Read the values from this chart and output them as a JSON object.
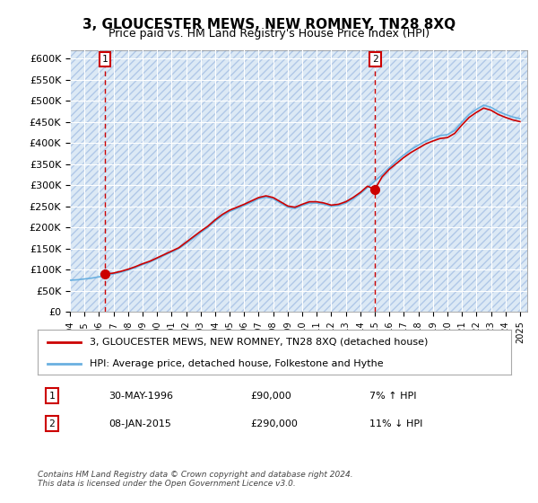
{
  "title": "3, GLOUCESTER MEWS, NEW ROMNEY, TN28 8XQ",
  "subtitle": "Price paid vs. HM Land Registry's House Price Index (HPI)",
  "ylim": [
    0,
    620000
  ],
  "yticks": [
    0,
    50000,
    100000,
    150000,
    200000,
    250000,
    300000,
    350000,
    400000,
    450000,
    500000,
    550000,
    600000
  ],
  "ytick_labels": [
    "£0",
    "£50K",
    "£100K",
    "£150K",
    "£200K",
    "£250K",
    "£300K",
    "£350K",
    "£400K",
    "£450K",
    "£500K",
    "£550K",
    "£600K"
  ],
  "xlim_start": 1994.0,
  "xlim_end": 2025.5,
  "background_color": "#dce9f5",
  "hatch_color": "#b0c8e8",
  "grid_color": "#ffffff",
  "line_color_hpi": "#6ab0e0",
  "line_color_price": "#cc0000",
  "point1_x": 1996.41,
  "point1_y": 90000,
  "point2_x": 2015.03,
  "point2_y": 290000,
  "annotation1_label": "1",
  "annotation2_label": "2",
  "legend_label_price": "3, GLOUCESTER MEWS, NEW ROMNEY, TN28 8XQ (detached house)",
  "legend_label_hpi": "HPI: Average price, detached house, Folkestone and Hythe",
  "table_row1": [
    "1",
    "30-MAY-1996",
    "£90,000",
    "7% ↑ HPI"
  ],
  "table_row2": [
    "2",
    "08-JAN-2015",
    "£290,000",
    "11% ↓ HPI"
  ],
  "footer_text": "Contains HM Land Registry data © Crown copyright and database right 2024.\nThis data is licensed under the Open Government Licence v3.0.",
  "hpi_years": [
    1994,
    1994.5,
    1995,
    1995.5,
    1996,
    1996.5,
    1997,
    1997.5,
    1998,
    1998.5,
    1999,
    1999.5,
    2000,
    2000.5,
    2001,
    2001.5,
    2002,
    2002.5,
    2003,
    2003.5,
    2004,
    2004.5,
    2005,
    2005.5,
    2006,
    2006.5,
    2007,
    2007.5,
    2008,
    2008.5,
    2009,
    2009.5,
    2010,
    2010.5,
    2011,
    2011.5,
    2012,
    2012.5,
    2013,
    2013.5,
    2014,
    2014.5,
    2015,
    2015.5,
    2016,
    2016.5,
    2017,
    2017.5,
    2018,
    2018.5,
    2019,
    2019.5,
    2020,
    2020.5,
    2021,
    2021.5,
    2022,
    2022.5,
    2023,
    2023.5,
    2024,
    2024.5,
    2025
  ],
  "hpi_values": [
    75000,
    76000,
    78000,
    80000,
    83000,
    86000,
    90000,
    94000,
    99000,
    105000,
    112000,
    118000,
    126000,
    134000,
    142000,
    150000,
    162000,
    175000,
    188000,
    200000,
    215000,
    228000,
    238000,
    245000,
    252000,
    260000,
    268000,
    272000,
    268000,
    258000,
    248000,
    245000,
    252000,
    258000,
    258000,
    255000,
    250000,
    252000,
    258000,
    268000,
    280000,
    295000,
    310000,
    325000,
    342000,
    358000,
    372000,
    385000,
    395000,
    405000,
    412000,
    418000,
    420000,
    430000,
    450000,
    468000,
    480000,
    490000,
    485000,
    475000,
    468000,
    462000,
    458000
  ],
  "price_years": [
    1994,
    1994.5,
    1995,
    1995.5,
    1996,
    1996.5,
    1997,
    1997.5,
    1998,
    1998.5,
    1999,
    1999.5,
    2000,
    2000.5,
    2001,
    2001.5,
    2002,
    2002.5,
    2003,
    2003.5,
    2004,
    2004.5,
    2005,
    2005.5,
    2006,
    2006.5,
    2007,
    2007.5,
    2008,
    2008.5,
    2009,
    2009.5,
    2010,
    2010.5,
    2011,
    2011.5,
    2012,
    2012.5,
    2013,
    2013.5,
    2014,
    2014.5,
    2015,
    2015.5,
    2016,
    2016.5,
    2017,
    2017.5,
    2018,
    2018.5,
    2019,
    2019.5,
    2020,
    2020.5,
    2021,
    2021.5,
    2022,
    2022.5,
    2023,
    2023.5,
    2024,
    2024.5,
    2025
  ],
  "price_values": [
    null,
    null,
    null,
    null,
    null,
    90000,
    92000,
    96000,
    101000,
    107000,
    114000,
    120000,
    128000,
    136000,
    144000,
    152000,
    165000,
    178000,
    191000,
    203000,
    218000,
    231000,
    241000,
    248000,
    255000,
    263000,
    271000,
    275000,
    271000,
    261000,
    251000,
    248000,
    255000,
    261000,
    261000,
    258000,
    253000,
    255000,
    261000,
    271000,
    283000,
    298000,
    290000,
    320000,
    338000,
    352000,
    366000,
    378000,
    388000,
    398000,
    405000,
    411000,
    413000,
    423000,
    443000,
    461000,
    473000,
    483000,
    478000,
    468000,
    461000,
    455000,
    451000
  ]
}
